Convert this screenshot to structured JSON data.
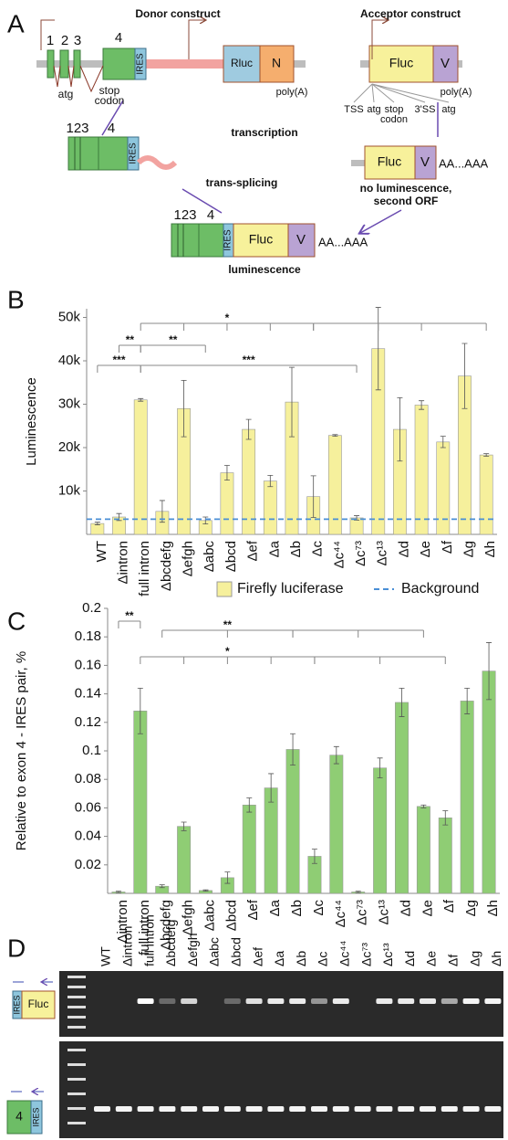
{
  "panel_labels": [
    "A",
    "B",
    "C",
    "D"
  ],
  "panel_a": {
    "donor_title": "Donor construct",
    "acceptor_title": "Acceptor construct",
    "exon_numbers": [
      "1",
      "2",
      "3",
      "4"
    ],
    "ires": "IRES",
    "rluc": "Rluc",
    "n": "N",
    "donor_atg": "atg",
    "donor_stop": [
      "stop",
      "codon"
    ],
    "donor_polya": "poly(A)",
    "fluc": "Fluc",
    "v": "V",
    "acceptor_polya": "poly(A)",
    "acceptor_sites": [
      [
        "TSS"
      ],
      [
        "atg"
      ],
      [
        "stop",
        "codon"
      ],
      [
        "3'SS"
      ],
      [
        "atg"
      ]
    ],
    "transcription": "transcription",
    "transcript_exons": [
      "123",
      "4"
    ],
    "transcript_ires": "IRES",
    "acceptor_transcript": {
      "fluc": "Fluc",
      "v": "V",
      "tail": "AA...AAA"
    },
    "trans_splicing": "trans-splicing",
    "no_luminescence": [
      "no luminescence,",
      "second ORF"
    ],
    "product": {
      "exons": [
        "123",
        "4"
      ],
      "ires": "IRES",
      "fluc": "Fluc",
      "v": "V",
      "tail": "AA...AAA"
    },
    "luminescence": "luminescence"
  },
  "chart_data": [
    {
      "type": "bar",
      "y_label": "Luminescence",
      "categories": [
        "WT",
        "Δintron",
        "full intron",
        "Δbcdefg",
        "Δefgh",
        "Δabc",
        "Δbcd",
        "Δef",
        "Δa",
        "Δb",
        "Δc",
        "Δc⁴⁴",
        "Δc⁷³",
        "Δc¹³",
        "Δd",
        "Δe",
        "Δf",
        "Δg",
        "Δh"
      ],
      "series": [
        {
          "name": "Firefly luciferase",
          "color": "#f6f09c",
          "values": [
            2500,
            4000,
            31000,
            5300,
            29000,
            3200,
            14200,
            24200,
            12300,
            30500,
            8700,
            22800,
            3800,
            42800,
            24200,
            29800,
            21300,
            36500,
            18300
          ],
          "errors": [
            300,
            800,
            300,
            2500,
            6500,
            800,
            1700,
            2300,
            1300,
            8000,
            4800,
            200,
            500,
            9500,
            7300,
            1000,
            1300,
            7500,
            300
          ]
        }
      ],
      "background": {
        "name": "Background",
        "value": 3500,
        "color": "#4a8fd6"
      },
      "ylim": [
        0,
        52000
      ],
      "yticks": [
        {
          "value": 10000,
          "label": "10k"
        },
        {
          "value": 20000,
          "label": "20k"
        },
        {
          "value": 30000,
          "label": "30k"
        },
        {
          "value": 40000,
          "label": "40k"
        },
        {
          "value": 50000,
          "label": "50k"
        }
      ],
      "grid": false,
      "legend": "bottom",
      "annotations": [
        "*",
        "**",
        "**",
        "***",
        "***"
      ]
    },
    {
      "type": "bar",
      "y_label": "Relative to exon 4 - IRES pair, %",
      "categories": [
        "Δintron",
        "full intron",
        "Δbcdefg",
        "Δefgh",
        "Δabc",
        "Δbcd",
        "Δef",
        "Δa",
        "Δb",
        "Δc",
        "Δc⁴⁴",
        "Δc⁷³",
        "Δc¹³",
        "Δd",
        "Δe",
        "Δf",
        "Δg",
        "Δh"
      ],
      "series": [
        {
          "color": "#8fcd74",
          "values": [
            0.001,
            0.128,
            0.005,
            0.047,
            0.002,
            0.011,
            0.062,
            0.074,
            0.101,
            0.026,
            0.097,
            0.001,
            0.088,
            0.134,
            0.061,
            0.053,
            0.135,
            0.156
          ],
          "errors": [
            0.0005,
            0.016,
            0.001,
            0.003,
            0.0005,
            0.004,
            0.005,
            0.01,
            0.011,
            0.005,
            0.006,
            0.0005,
            0.007,
            0.01,
            0.001,
            0.005,
            0.009,
            0.02
          ]
        }
      ],
      "ylim": [
        0,
        0.2
      ],
      "yticks": [
        0.02,
        0.04,
        0.06,
        0.08,
        0.1,
        0.12,
        0.14,
        0.16,
        0.18,
        0.2
      ],
      "grid": false,
      "annotations": [
        "**",
        "**",
        "*"
      ]
    }
  ],
  "panel_d": {
    "lanes": [
      "WT",
      "Δintron",
      "full intron",
      "Δbcdefg",
      "Δefgh",
      "Δabc",
      "Δbcd",
      "Δef",
      "Δa",
      "Δb",
      "Δc",
      "Δc⁴⁴",
      "Δc⁷³",
      "Δc¹³",
      "Δd",
      "Δe",
      "Δf",
      "Δg",
      "Δh"
    ],
    "top_marker": {
      "ires": "IRES",
      "fluc": "Fluc"
    },
    "bottom_marker": {
      "exon": "4",
      "ires": "IRES"
    }
  }
}
